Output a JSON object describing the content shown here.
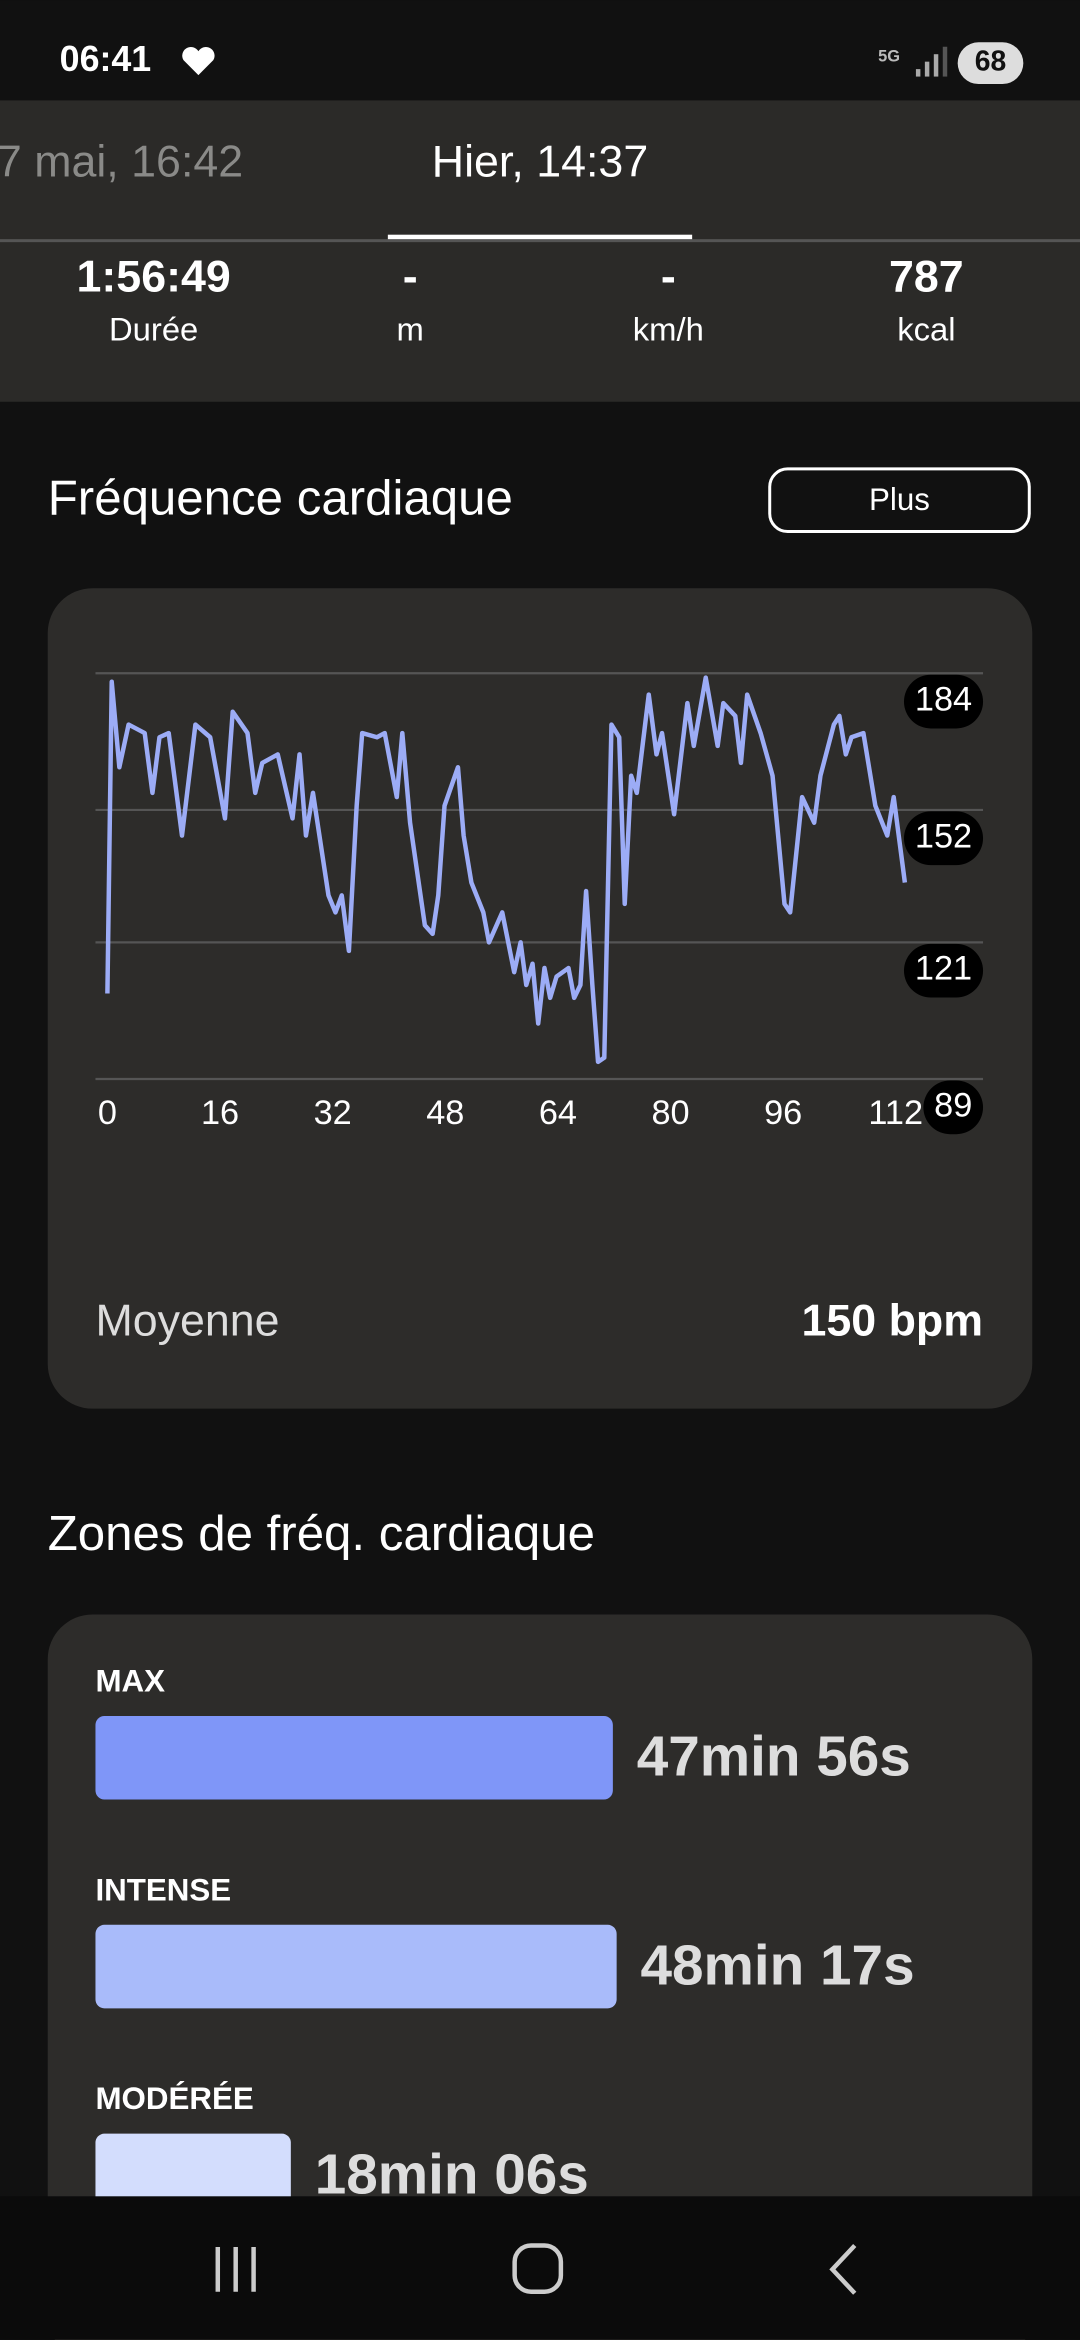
{
  "status": {
    "time": "06:41",
    "network": "5G",
    "battery": "68"
  },
  "tabs": [
    "7 mai, 16:42",
    "Hier, 14:37"
  ],
  "stats": [
    {
      "value": "1:56:49",
      "label": "Durée"
    },
    {
      "value": "-",
      "label": "m"
    },
    {
      "value": "-",
      "label": "km/h"
    },
    {
      "value": "787",
      "label": "kcal"
    }
  ],
  "hr": {
    "title": "Fréquence cardiaque",
    "button": "Plus",
    "chart": {
      "type": "line",
      "x": [
        0,
        0.6,
        1.7,
        3.0,
        5.3,
        6.4,
        7.4,
        8.7,
        10.6,
        12.5,
        14.6,
        16.7,
        17.8,
        19.9,
        21.0,
        22.0,
        24.2,
        26.3,
        27.3,
        28.2,
        29.2,
        31.4,
        32.4,
        33.3,
        34.3,
        35.4,
        36.2,
        38.3,
        39.4,
        41.1,
        41.9,
        43.0,
        45.1,
        46.2,
        47.0,
        47.9,
        49.8,
        50.6,
        51.7,
        53.4,
        54.2,
        56.1,
        57.8,
        58.7,
        59.5,
        60.4,
        61.2,
        62.1,
        62.9,
        63.8,
        65.5,
        66.3,
        67.2,
        68.0,
        68.9,
        69.7,
        70.6,
        71.6,
        72.7,
        73.5,
        74.4,
        75.2,
        76.9,
        78.0,
        78.8,
        80.5,
        82.4,
        83.3,
        85.0,
        86.7,
        87.5,
        89.2,
        90.0,
        90.9,
        92.8,
        94.5,
        96.2,
        97.0,
        98.7,
        100.4,
        101.3,
        103.2,
        104.0,
        104.9,
        105.7,
        107.4,
        109.1,
        110.8,
        111.7,
        113.3
      ],
      "series": [
        {
          "color": "#9cacf6",
          "values": [
            109,
            182,
            162,
            172,
            170,
            156,
            169,
            170,
            146,
            172,
            169,
            150,
            175,
            170,
            156,
            163,
            165,
            150,
            165,
            146,
            156,
            132,
            128,
            132,
            119,
            153,
            170,
            169,
            170,
            155,
            170,
            149,
            125,
            123,
            132,
            153,
            162,
            146,
            135,
            128,
            121,
            128,
            114,
            121,
            111,
            116,
            102,
            115,
            108,
            113,
            115,
            108,
            111,
            133,
            111,
            93,
            94,
            172,
            169,
            130,
            160,
            156,
            179,
            165,
            170,
            151,
            177,
            167,
            183,
            167,
            177,
            174,
            163,
            179,
            170,
            160,
            130,
            128,
            155,
            149,
            160,
            172,
            174,
            165,
            169,
            170,
            153,
            146,
            155,
            135
          ]
        }
      ],
      "xlim": [
        -1.7,
        124.4
      ],
      "ylim": [
        89,
        184
      ],
      "xticks": [
        0,
        16,
        32,
        48,
        64,
        80,
        96,
        112
      ],
      "yticks": [
        184,
        152,
        121,
        89
      ],
      "grid": true
    },
    "average_label": "Moyenne",
    "average": "150 bpm"
  },
  "zones": {
    "title": "Zones de fréq. cardiaque",
    "items": [
      {
        "name": "MAX",
        "seconds": 2876,
        "label": "47min 56s",
        "color": "#7f96f8"
      },
      {
        "name": "INTENSE",
        "seconds": 2897,
        "label": "48min 17s",
        "color": "#a9bbfa"
      },
      {
        "name": "MODÉRÉE",
        "seconds": 1086,
        "label": "18min 06s",
        "color": "#d3ddfd"
      }
    ]
  }
}
